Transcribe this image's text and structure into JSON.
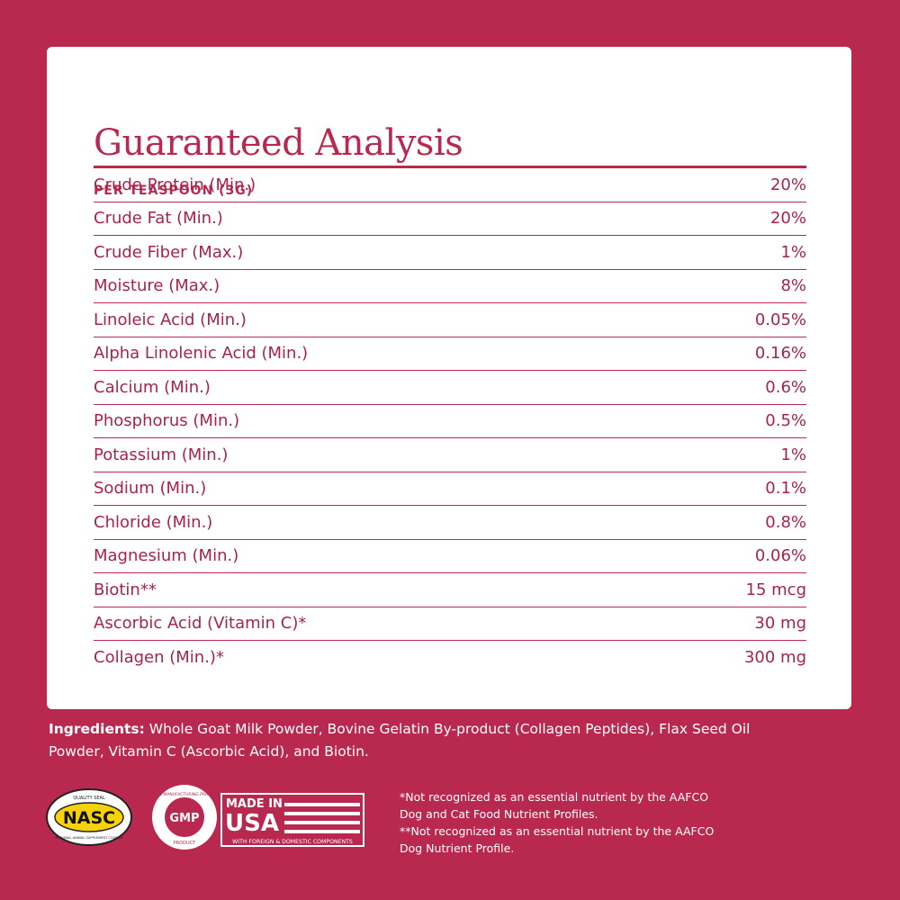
{
  "header": {
    "title": "Guaranteed Analysis",
    "subtitle": "PER TEASPOON (3G)"
  },
  "table": {
    "rows": [
      [
        "Crude Protein (Min.)",
        "20%"
      ],
      [
        "Crude Fat (Min.)",
        "20%"
      ],
      [
        "Crude Fiber (Max.)",
        "1%"
      ],
      [
        "Moisture (Max.)",
        "8%"
      ],
      [
        "Linoleic Acid (Min.)",
        "0.05%"
      ],
      [
        "Alpha Linolenic Acid (Min.)",
        "0.16%"
      ],
      [
        "Calcium (Min.)",
        "0.6%"
      ],
      [
        "Phosphorus (Min.)",
        "0.5%"
      ],
      [
        "Potassium (Min.)",
        "1%"
      ],
      [
        "Sodium (Min.)",
        "0.1%"
      ],
      [
        "Chloride (Min.)",
        "0.8%"
      ],
      [
        "Magnesium (Min.)",
        "0.06%"
      ],
      [
        "Biotin**",
        "15 mcg"
      ],
      [
        "Ascorbic Acid (Vitamin C)*",
        "30 mg"
      ],
      [
        "Collagen (Min.)*",
        "300 mg"
      ]
    ]
  },
  "ingredients": {
    "label": "Ingredients:",
    "text": "Whole Goat Milk Powder, Bovine Gelatin By-product (Collagen Peptides), Flax Seed Oil Powder, Vitamin C (Ascorbic Acid), and Biotin."
  },
  "badges": {
    "nasc": {
      "top": "QUALITY SEAL",
      "name": "NASC",
      "bottom": "NATIONAL ANIMAL SUPPLEMENT COUNCIL"
    },
    "gmp": {
      "top": "GOOD MANUFACTURING PRACTICE",
      "name": "GMP",
      "bottom": "PRODUCT"
    },
    "usa": {
      "top": "MADE IN",
      "name": "USA",
      "bottom": "WITH FOREIGN & DOMESTIC COMPONENTS"
    }
  },
  "footnotes": [
    [
      "*Not recognized as an essential nutrient by the AAFCO",
      "Dog and Cat Food Nutrient Profiles."
    ],
    [
      "**Not recognized as an essential nutrient by the AAFCO",
      "Dog Nutrient Profile."
    ]
  ]
}
